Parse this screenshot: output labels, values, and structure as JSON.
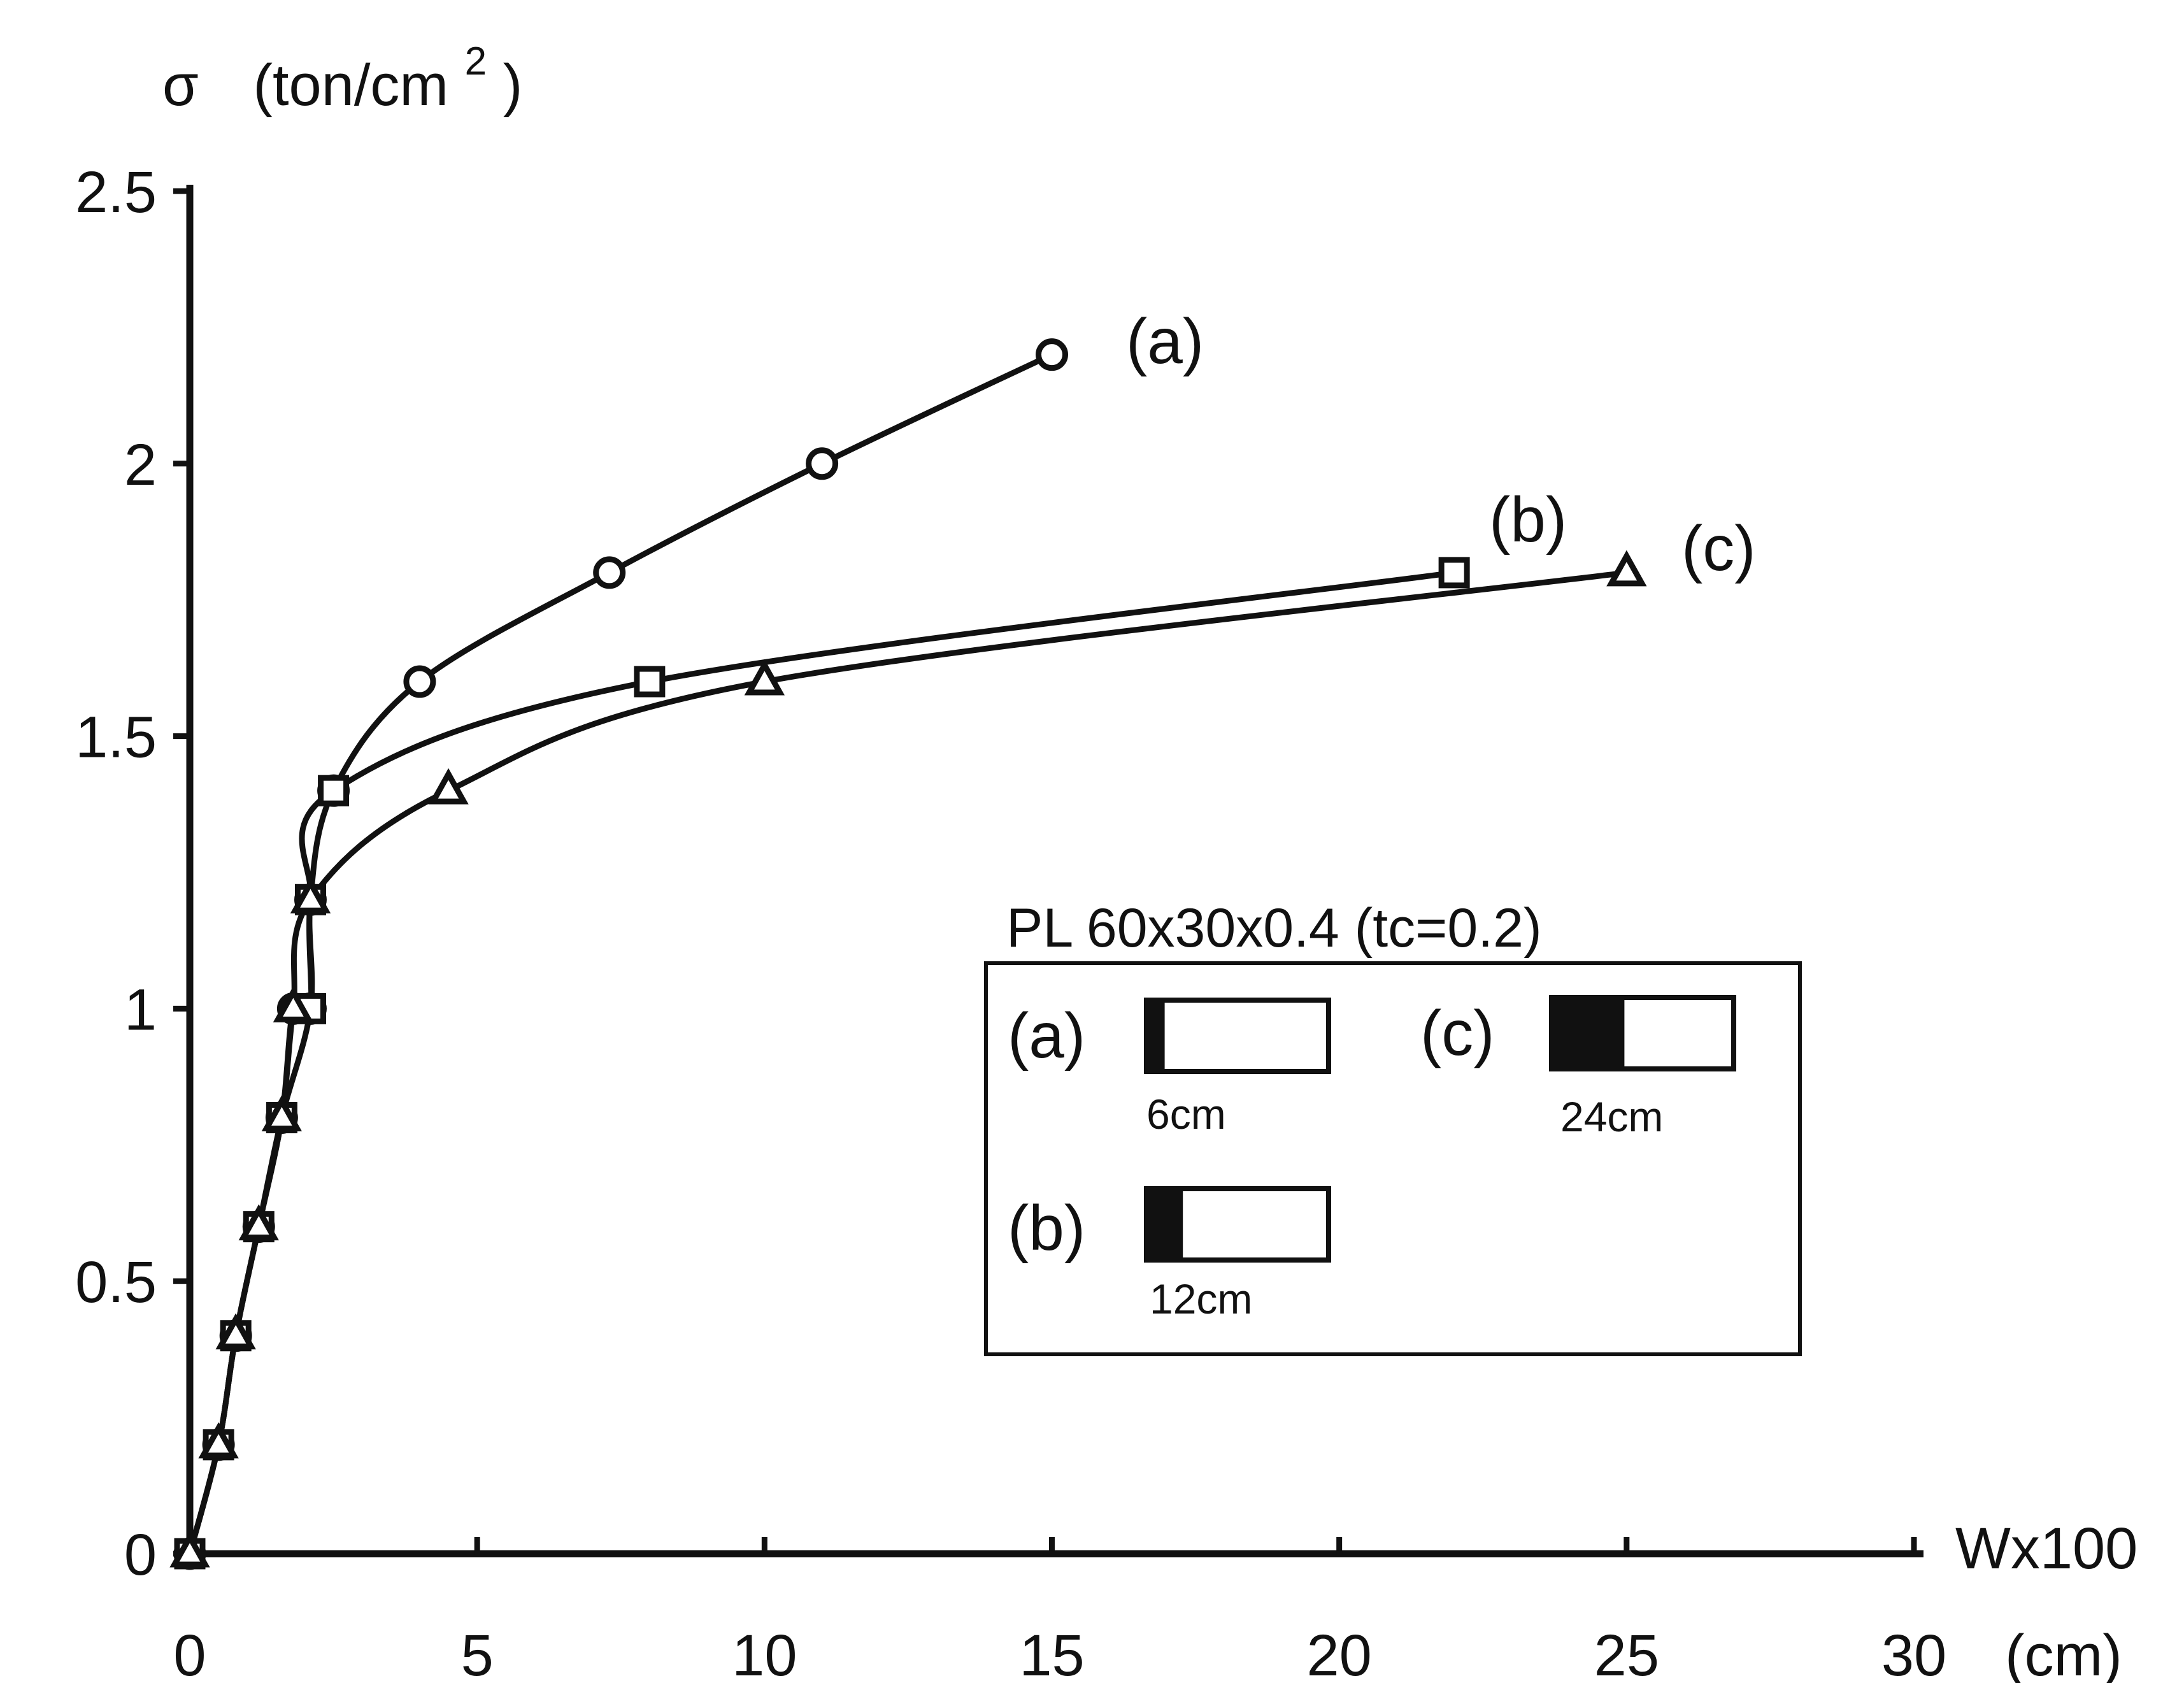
{
  "chart_data": {
    "type": "line",
    "ylabel_symbol": "σ",
    "ylabel_unit": "(ton/cm",
    "ylabel_exp": "2",
    "ylabel_close": ")",
    "xlabel": "Wx100",
    "xunit": "(cm)",
    "xlim": [
      0,
      30
    ],
    "ylim": [
      0,
      2.5
    ],
    "xticks": [
      "0",
      "5",
      "10",
      "15",
      "20",
      "25",
      "30"
    ],
    "yticks": [
      "0",
      "0.5",
      "1",
      "1.5",
      "2",
      "2.5"
    ],
    "grid": false,
    "series": [
      {
        "name": "(a)",
        "marker": "circle",
        "x": [
          0,
          0.5,
          0.8,
          1.2,
          1.6,
          1.8,
          2.1,
          2.1,
          2.5,
          4,
          7.3,
          11,
          15
        ],
        "y": [
          0,
          0.2,
          0.4,
          0.6,
          0.8,
          1.0,
          1.0,
          1.2,
          1.4,
          1.6,
          1.8,
          2.0,
          2.2
        ]
      },
      {
        "name": "(b)",
        "marker": "square",
        "x": [
          0,
          0.5,
          0.8,
          1.2,
          1.6,
          2.1,
          2.1,
          2.5,
          8,
          22
        ],
        "y": [
          0,
          0.2,
          0.4,
          0.6,
          0.8,
          1.0,
          1.2,
          1.4,
          1.6,
          1.8
        ]
      },
      {
        "name": "(c)",
        "marker": "triangle",
        "x": [
          0,
          0.5,
          0.8,
          1.2,
          1.6,
          1.8,
          2.1,
          4.5,
          10,
          25
        ],
        "y": [
          0,
          0.2,
          0.4,
          0.6,
          0.8,
          1.0,
          1.2,
          1.4,
          1.6,
          1.8
        ]
      }
    ],
    "legend": {
      "title": "PL 60x30x0.4 (tc=0.2)",
      "placement": "center-right",
      "items": [
        {
          "label": "(a)",
          "width_label": "6cm",
          "fill_fraction": 0.1
        },
        {
          "label": "(c)",
          "width_label": "24cm",
          "fill_fraction": 0.4
        },
        {
          "label": "(b)",
          "width_label": "12cm",
          "fill_fraction": 0.2
        }
      ]
    }
  }
}
